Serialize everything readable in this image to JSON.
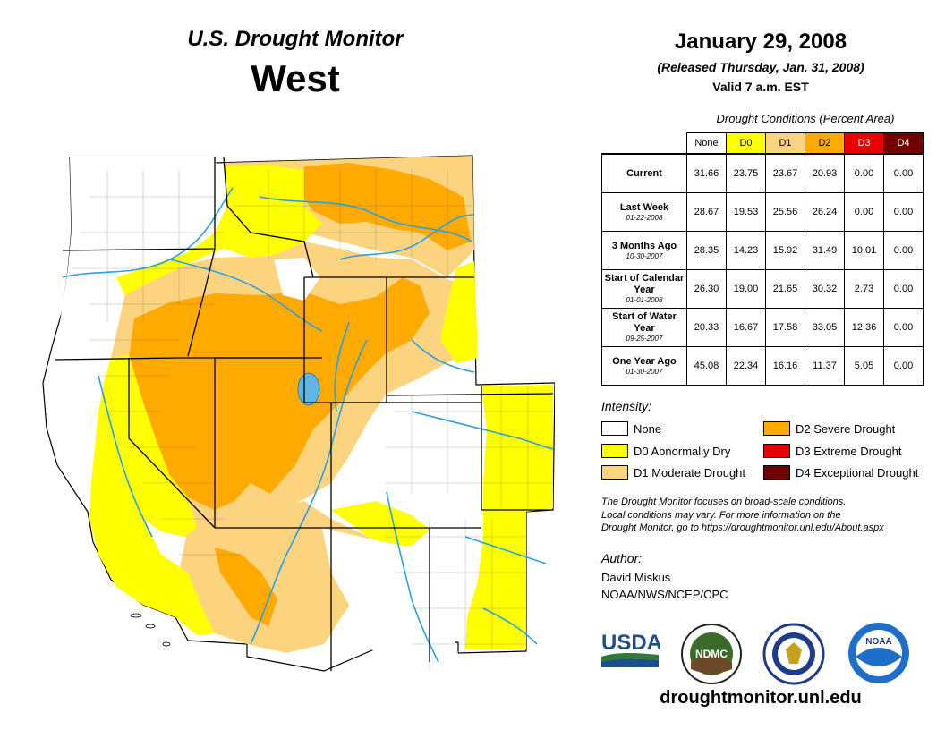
{
  "header": {
    "title_line1": "U.S. Drought Monitor",
    "title_line2": "West",
    "date": "January 29, 2008",
    "released": "(Released Thursday, Jan. 31, 2008)",
    "valid": "Valid 7 a.m. EST"
  },
  "table": {
    "caption": "Drought Conditions (Percent Area)",
    "columns": [
      {
        "label": "None",
        "color": "#ffffff",
        "text_color": "#000000"
      },
      {
        "label": "D0",
        "color": "#ffff00",
        "text_color": "#000000"
      },
      {
        "label": "D1",
        "color": "#fcd37f",
        "text_color": "#000000"
      },
      {
        "label": "D2",
        "color": "#ffaa00",
        "text_color": "#000000"
      },
      {
        "label": "D3",
        "color": "#e60000",
        "text_color": "#ffffff"
      },
      {
        "label": "D4",
        "color": "#730000",
        "text_color": "#ffffff"
      }
    ],
    "rows": [
      {
        "label": "Current",
        "date": "",
        "values": [
          "31.66",
          "23.75",
          "23.67",
          "20.93",
          "0.00",
          "0.00"
        ]
      },
      {
        "label": "Last Week",
        "date": "01-22-2008",
        "values": [
          "28.67",
          "19.53",
          "25.56",
          "26.24",
          "0.00",
          "0.00"
        ]
      },
      {
        "label": "3 Months Ago",
        "date": "10-30-2007",
        "values": [
          "28.35",
          "14.23",
          "15.92",
          "31.49",
          "10.01",
          "0.00"
        ]
      },
      {
        "label": "Start of Calendar Year",
        "date": "01-01-2008",
        "values": [
          "26.30",
          "19.00",
          "21.65",
          "30.32",
          "2.73",
          "0.00"
        ]
      },
      {
        "label": "Start of Water Year",
        "date": "09-25-2007",
        "values": [
          "20.33",
          "16.67",
          "17.58",
          "33.05",
          "12.36",
          "0.00"
        ]
      },
      {
        "label": "One Year Ago",
        "date": "01-30-2007",
        "values": [
          "45.08",
          "22.34",
          "16.16",
          "11.37",
          "5.05",
          "0.00"
        ]
      }
    ]
  },
  "legend": {
    "title": "Intensity:",
    "items": [
      {
        "label": "None",
        "color": "#ffffff"
      },
      {
        "label": "D0 Abnormally Dry",
        "color": "#ffff00"
      },
      {
        "label": "D1 Moderate Drought",
        "color": "#fcd37f"
      },
      {
        "label": "D2 Severe Drought",
        "color": "#ffaa00"
      },
      {
        "label": "D3 Extreme Drought",
        "color": "#e60000"
      },
      {
        "label": "D4 Exceptional Drought",
        "color": "#730000"
      }
    ]
  },
  "note": {
    "line1": "The Drought Monitor focuses on broad-scale conditions.",
    "line2": "Local conditions may vary. For more information on the",
    "line3": "Drought Monitor, go to https://droughtmonitor.unl.edu/About.aspx"
  },
  "author": {
    "title": "Author:",
    "name": "David Miskus",
    "org": "NOAA/NWS/NCEP/CPC"
  },
  "logos": {
    "usda": "USDA",
    "ndmc": "NDMC",
    "noaa": "NOAA"
  },
  "footer": {
    "url": "droughtmonitor.unl.edu"
  }
}
